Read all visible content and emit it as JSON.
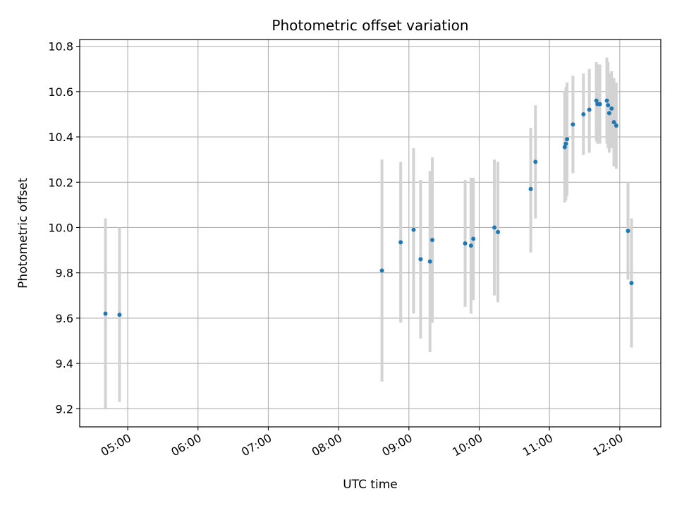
{
  "chart_data": {
    "type": "scatter",
    "title": "Photometric offset variation",
    "xlabel": "UTC time",
    "ylabel": "Photometric offset",
    "grid": true,
    "xlim": [
      "04:19",
      "12:35"
    ],
    "ylim": [
      9.12,
      10.83
    ],
    "x_ticks": [
      "05:00",
      "06:00",
      "07:00",
      "08:00",
      "09:00",
      "10:00",
      "11:00",
      "12:00"
    ],
    "y_ticks": [
      9.2,
      9.4,
      9.6,
      9.8,
      10.0,
      10.2,
      10.4,
      10.6,
      10.8
    ],
    "colors": {
      "point": "#1f77b4",
      "errorbar": "#d3d3d3",
      "grid": "#b0b0b0"
    },
    "points": [
      {
        "x": "04:41",
        "y": 9.62,
        "lo": 9.2,
        "hi": 10.04
      },
      {
        "x": "04:53",
        "y": 9.615,
        "lo": 9.23,
        "hi": 10.0
      },
      {
        "x": "08:37",
        "y": 9.81,
        "lo": 9.32,
        "hi": 10.3
      },
      {
        "x": "08:53",
        "y": 9.935,
        "lo": 9.58,
        "hi": 10.29
      },
      {
        "x": "09:04",
        "y": 9.99,
        "lo": 9.62,
        "hi": 10.35
      },
      {
        "x": "09:10",
        "y": 9.86,
        "lo": 9.51,
        "hi": 10.21
      },
      {
        "x": "09:18",
        "y": 9.85,
        "lo": 9.45,
        "hi": 10.25
      },
      {
        "x": "09:20",
        "y": 9.945,
        "lo": 9.58,
        "hi": 10.31
      },
      {
        "x": "09:48",
        "y": 9.93,
        "lo": 9.65,
        "hi": 10.21
      },
      {
        "x": "09:53",
        "y": 9.92,
        "lo": 9.62,
        "hi": 10.22
      },
      {
        "x": "09:55",
        "y": 9.95,
        "lo": 9.68,
        "hi": 10.22
      },
      {
        "x": "10:13",
        "y": 10.0,
        "lo": 9.7,
        "hi": 10.3
      },
      {
        "x": "10:16",
        "y": 9.98,
        "lo": 9.67,
        "hi": 10.29
      },
      {
        "x": "10:44",
        "y": 10.17,
        "lo": 9.89,
        "hi": 10.44
      },
      {
        "x": "10:48",
        "y": 10.29,
        "lo": 10.04,
        "hi": 10.54
      },
      {
        "x": "11:13",
        "y": 10.355,
        "lo": 10.11,
        "hi": 10.6
      },
      {
        "x": "11:14",
        "y": 10.37,
        "lo": 10.12,
        "hi": 10.62
      },
      {
        "x": "11:15",
        "y": 10.39,
        "lo": 10.14,
        "hi": 10.64
      },
      {
        "x": "11:20",
        "y": 10.455,
        "lo": 10.24,
        "hi": 10.67
      },
      {
        "x": "11:29",
        "y": 10.5,
        "lo": 10.32,
        "hi": 10.68
      },
      {
        "x": "11:34",
        "y": 10.52,
        "lo": 10.33,
        "hi": 10.7
      },
      {
        "x": "11:40",
        "y": 10.56,
        "lo": 10.38,
        "hi": 10.73
      },
      {
        "x": "11:41",
        "y": 10.545,
        "lo": 10.37,
        "hi": 10.72
      },
      {
        "x": "11:43",
        "y": 10.545,
        "lo": 10.37,
        "hi": 10.72
      },
      {
        "x": "11:49",
        "y": 10.56,
        "lo": 10.37,
        "hi": 10.75
      },
      {
        "x": "11:50",
        "y": 10.54,
        "lo": 10.35,
        "hi": 10.73
      },
      {
        "x": "11:51",
        "y": 10.505,
        "lo": 10.33,
        "hi": 10.68
      },
      {
        "x": "11:53",
        "y": 10.525,
        "lo": 10.35,
        "hi": 10.69
      },
      {
        "x": "11:55",
        "y": 10.465,
        "lo": 10.27,
        "hi": 10.66
      },
      {
        "x": "11:57",
        "y": 10.45,
        "lo": 10.26,
        "hi": 10.64
      },
      {
        "x": "12:07",
        "y": 9.985,
        "lo": 9.77,
        "hi": 10.2
      },
      {
        "x": "12:10",
        "y": 9.755,
        "lo": 9.47,
        "hi": 10.04
      }
    ]
  }
}
